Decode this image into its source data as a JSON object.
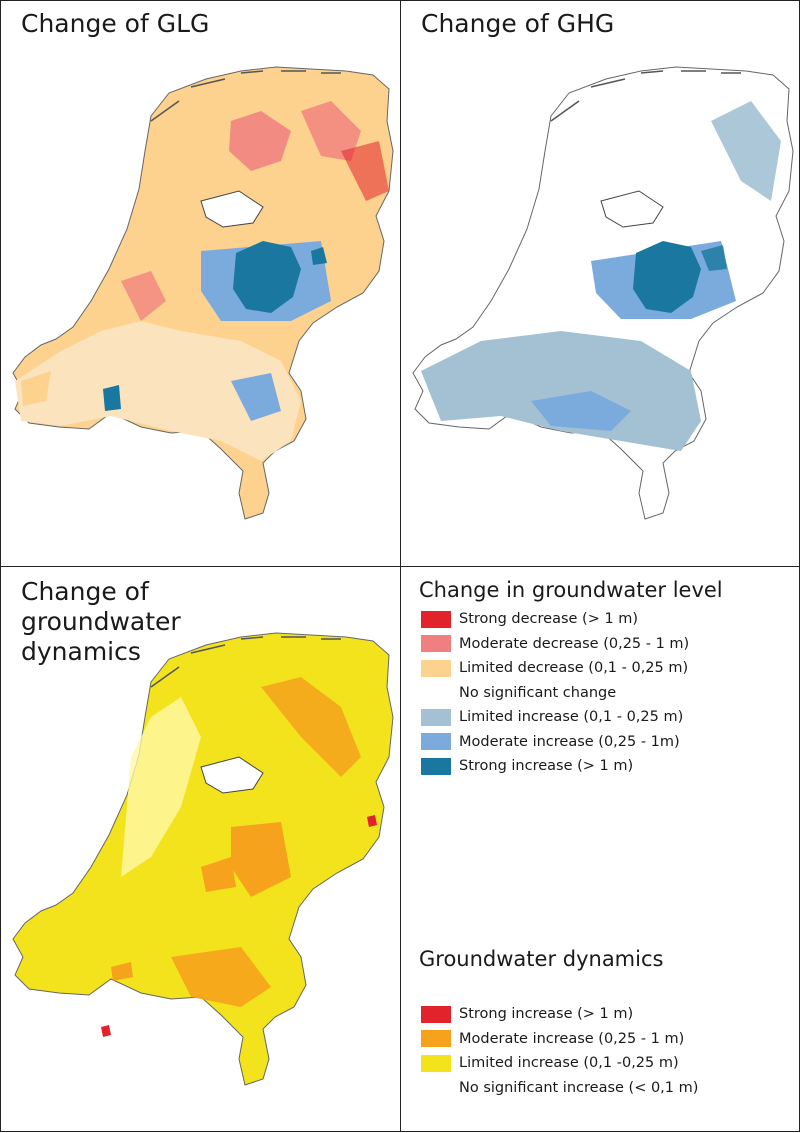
{
  "panels": {
    "glg": {
      "title": "Change of GLG"
    },
    "ghg": {
      "title": "Change of GHG"
    },
    "dynamics": {
      "title_lines": [
        "Change of",
        "groundwater",
        "dynamics"
      ]
    }
  },
  "legend_level": {
    "title": "Change in groundwater level",
    "items": [
      {
        "label": "Strong decrease (> 1 m)",
        "color": "#e2232b"
      },
      {
        "label": "Moderate decrease (0,25 - 1 m)",
        "color": "#f08080"
      },
      {
        "label": "Limited decrease (0,1 - 0,25 m)",
        "color": "#fdd28e"
      },
      {
        "label": "No significant change",
        "color": "#ffffff"
      },
      {
        "label": "Limited increase (0,1 - 0,25 m)",
        "color": "#a3c1d3"
      },
      {
        "label": "Moderate increase (0,25 -  1m)",
        "color": "#7aabdc"
      },
      {
        "label": "Strong increase (> 1 m)",
        "color": "#1a78a0"
      }
    ]
  },
  "legend_dynamics": {
    "title": "Groundwater dynamics",
    "items": [
      {
        "label": "Strong increase (> 1 m)",
        "color": "#e2232b"
      },
      {
        "label": "Moderate increase (0,25 - 1 m)",
        "color": "#f6a21c"
      },
      {
        "label": "Limited increase (0,1 -0,25 m)",
        "color": "#f2e31c"
      },
      {
        "label": "No significant increase (< 0,1 m)",
        "color": "#ffffff"
      }
    ]
  }
}
